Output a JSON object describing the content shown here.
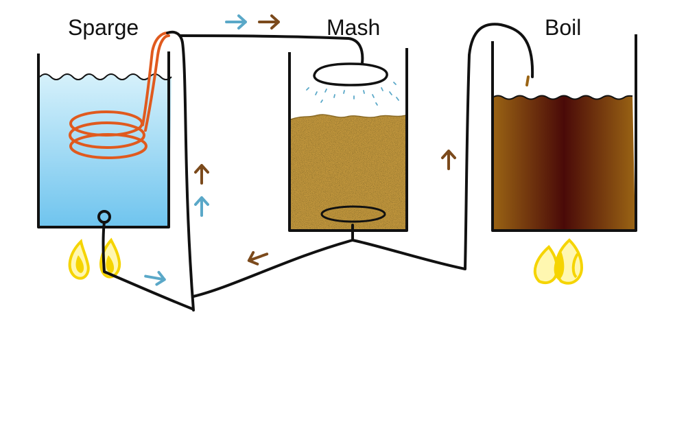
{
  "vessels": [
    {
      "id": "sparge",
      "label": "Sparge",
      "contents": "hot-water",
      "heated": true
    },
    {
      "id": "mash",
      "label": "Mash",
      "contents": "grain-bed",
      "heated": false
    },
    {
      "id": "boil",
      "label": "Boil",
      "contents": "wort",
      "heated": true
    }
  ],
  "colors": {
    "water_light": "#d6f1fb",
    "water_dark": "#6fc4ee",
    "coil": "#e05a1e",
    "grain": "#c79a3e",
    "wort_edge": "#9a6414",
    "wort_center": "#4a0a08",
    "flame_outer": "#f5d400",
    "flame_inner": "#fff7b0",
    "water_arrow": "#5aa8c8",
    "wort_arrow": "#7b4a1c",
    "pipe": "#111111"
  },
  "flow_arrows": [
    {
      "flow": "water",
      "direction": "right"
    },
    {
      "flow": "wort",
      "direction": "right"
    },
    {
      "flow": "wort",
      "direction": "up"
    },
    {
      "flow": "water",
      "direction": "up"
    },
    {
      "flow": "water",
      "direction": "right"
    },
    {
      "flow": "wort",
      "direction": "left"
    },
    {
      "flow": "wort",
      "direction": "up"
    }
  ]
}
